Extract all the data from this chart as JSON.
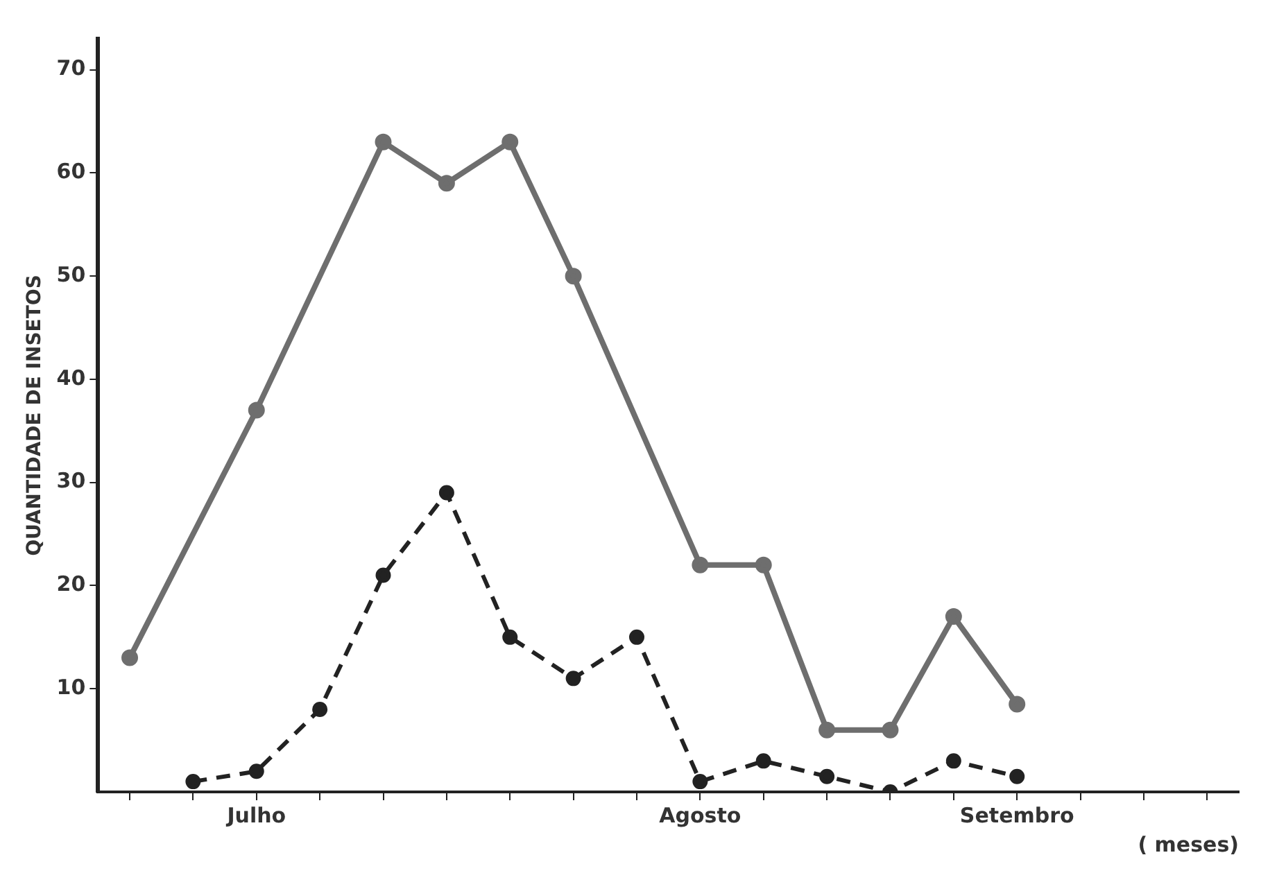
{
  "chart_data": {
    "type": "line",
    "ylabel": "QUANTIDADE DE INSETOS",
    "xlabel": "( meses)",
    "categories": [
      null,
      null,
      "Julho",
      null,
      null,
      null,
      null,
      null,
      null,
      "Agosto",
      null,
      null,
      null,
      null,
      "Setembro",
      null,
      null,
      null
    ],
    "ylim": [
      0,
      73
    ],
    "yticks": [
      10,
      20,
      30,
      40,
      50,
      60,
      70
    ],
    "grid": false,
    "legend": false,
    "marker": "circle",
    "series": [
      {
        "color": "#6e6e6e",
        "line_style": "solid",
        "values": [
          13,
          null,
          37,
          null,
          63,
          59,
          63,
          50,
          null,
          22,
          22,
          6,
          6,
          17,
          8.5,
          null,
          null,
          null
        ]
      },
      {
        "color": "#222222",
        "line_style": "dashed",
        "values": [
          null,
          1,
          2,
          8,
          21,
          29,
          15,
          11,
          15,
          1,
          3,
          1.5,
          0,
          3,
          1.5,
          null,
          null,
          null
        ]
      }
    ]
  }
}
